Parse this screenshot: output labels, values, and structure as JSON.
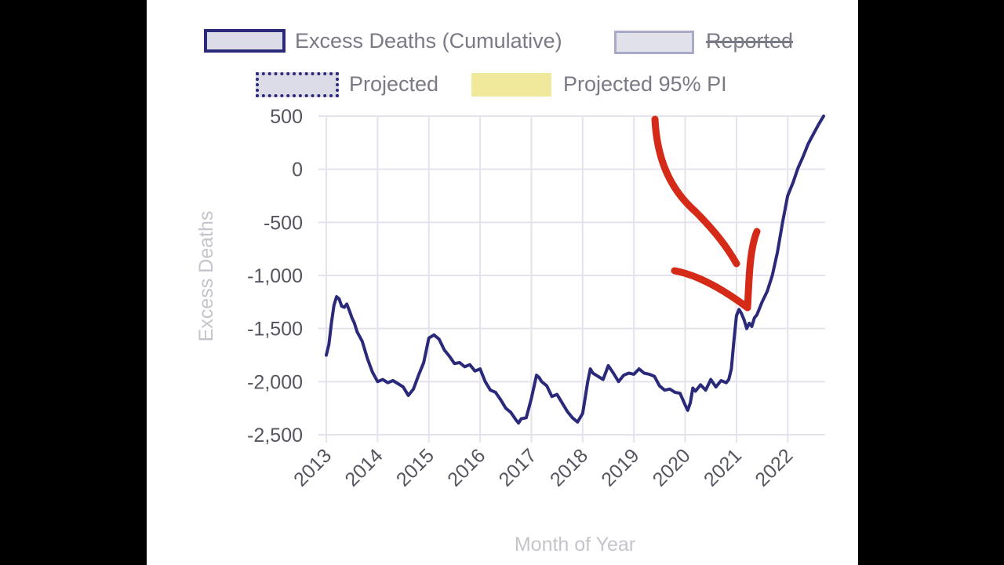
{
  "legend": {
    "items": [
      {
        "label": "Excess Deaths (Cumulative)",
        "style": "solid"
      },
      {
        "label": "Reported",
        "style": "struck"
      },
      {
        "label": "Projected",
        "style": "dotted"
      },
      {
        "label": "Projected 95% PI",
        "style": "band"
      }
    ]
  },
  "colors": {
    "line": "#2b2a7a",
    "grid": "#e4e2ec",
    "annotation": "#d42a17",
    "band": "#f0e89a"
  },
  "chart_data": {
    "type": "line",
    "title": "",
    "xlabel": "Month of Year",
    "ylabel": "Excess Deaths",
    "ylim": [
      -2500,
      500
    ],
    "xlim": [
      2013,
      2022.7
    ],
    "y_ticks": [
      500,
      0,
      -500,
      -1000,
      -1500,
      -2000,
      -2500
    ],
    "y_tick_labels": [
      "500",
      "0",
      "-500",
      "-1,000",
      "-1,500",
      "-2,000",
      "-2,500"
    ],
    "x_ticks": [
      2013,
      2014,
      2015,
      2016,
      2017,
      2018,
      2019,
      2020,
      2021,
      2022
    ],
    "x_tick_labels": [
      "2013",
      "2014",
      "2015",
      "2016",
      "2017",
      "2018",
      "2019",
      "2020",
      "2021",
      "2022"
    ],
    "grid": true,
    "series": [
      {
        "name": "Excess Deaths (Cumulative)",
        "x": [
          2013.0,
          2013.05,
          2013.1,
          2013.15,
          2013.2,
          2013.25,
          2013.3,
          2013.35,
          2013.4,
          2013.45,
          2013.5,
          2013.55,
          2013.6,
          2013.7,
          2013.8,
          2013.9,
          2014.0,
          2014.1,
          2014.2,
          2014.3,
          2014.4,
          2014.5,
          2014.6,
          2014.7,
          2014.8,
          2014.9,
          2015.0,
          2015.1,
          2015.15,
          2015.2,
          2015.25,
          2015.3,
          2015.4,
          2015.5,
          2015.6,
          2015.7,
          2015.8,
          2015.9,
          2016.0,
          2016.1,
          2016.2,
          2016.3,
          2016.4,
          2016.5,
          2016.6,
          2016.7,
          2016.75,
          2016.8,
          2016.9,
          2017.0,
          2017.05,
          2017.1,
          2017.15,
          2017.2,
          2017.3,
          2017.4,
          2017.5,
          2017.6,
          2017.7,
          2017.8,
          2017.9,
          2018.0,
          2018.05,
          2018.1,
          2018.15,
          2018.2,
          2018.3,
          2018.4,
          2018.5,
          2018.6,
          2018.7,
          2018.8,
          2018.9,
          2019.0,
          2019.1,
          2019.2,
          2019.3,
          2019.4,
          2019.5,
          2019.6,
          2019.7,
          2019.8,
          2019.9,
          2020.0,
          2020.05,
          2020.1,
          2020.15,
          2020.2,
          2020.3,
          2020.4,
          2020.5,
          2020.6,
          2020.7,
          2020.8,
          2020.85,
          2020.9,
          2020.95,
          2021.0,
          2021.05,
          2021.1,
          2021.15,
          2021.2,
          2021.25,
          2021.3,
          2021.35,
          2021.4,
          2021.5,
          2021.6,
          2021.7,
          2021.8,
          2021.9,
          2022.0,
          2022.1,
          2022.2,
          2022.3,
          2022.4,
          2022.5,
          2022.6,
          2022.7
        ],
        "values": [
          -1750,
          -1650,
          -1450,
          -1280,
          -1200,
          -1220,
          -1290,
          -1300,
          -1270,
          -1330,
          -1400,
          -1450,
          -1530,
          -1620,
          -1780,
          -1910,
          -2000,
          -1980,
          -2010,
          -1990,
          -2020,
          -2050,
          -2130,
          -2070,
          -1940,
          -1820,
          -1590,
          -1560,
          -1580,
          -1600,
          -1650,
          -1700,
          -1760,
          -1830,
          -1820,
          -1860,
          -1840,
          -1900,
          -1880,
          -2000,
          -2080,
          -2100,
          -2170,
          -2250,
          -2290,
          -2360,
          -2390,
          -2350,
          -2340,
          -2160,
          -2050,
          -1940,
          -1960,
          -2000,
          -2040,
          -2140,
          -2120,
          -2200,
          -2280,
          -2340,
          -2380,
          -2300,
          -2150,
          -2000,
          -1880,
          -1920,
          -1950,
          -1980,
          -1850,
          -1920,
          -2000,
          -1940,
          -1920,
          -1930,
          -1880,
          -1920,
          -1930,
          -1950,
          -2040,
          -2080,
          -2070,
          -2100,
          -2110,
          -2220,
          -2270,
          -2200,
          -2060,
          -2090,
          -2030,
          -2080,
          -1980,
          -2050,
          -1990,
          -2010,
          -1980,
          -1880,
          -1620,
          -1380,
          -1320,
          -1360,
          -1420,
          -1500,
          -1450,
          -1480,
          -1400,
          -1370,
          -1250,
          -1150,
          -1000,
          -780,
          -500,
          -250,
          -130,
          10,
          120,
          240,
          330,
          420,
          500
        ]
      }
    ],
    "annotations": [
      {
        "type": "hand-drawn-arrow",
        "color": "#d42a17",
        "points_to": [
          2021.25,
          -1300
        ]
      }
    ]
  }
}
